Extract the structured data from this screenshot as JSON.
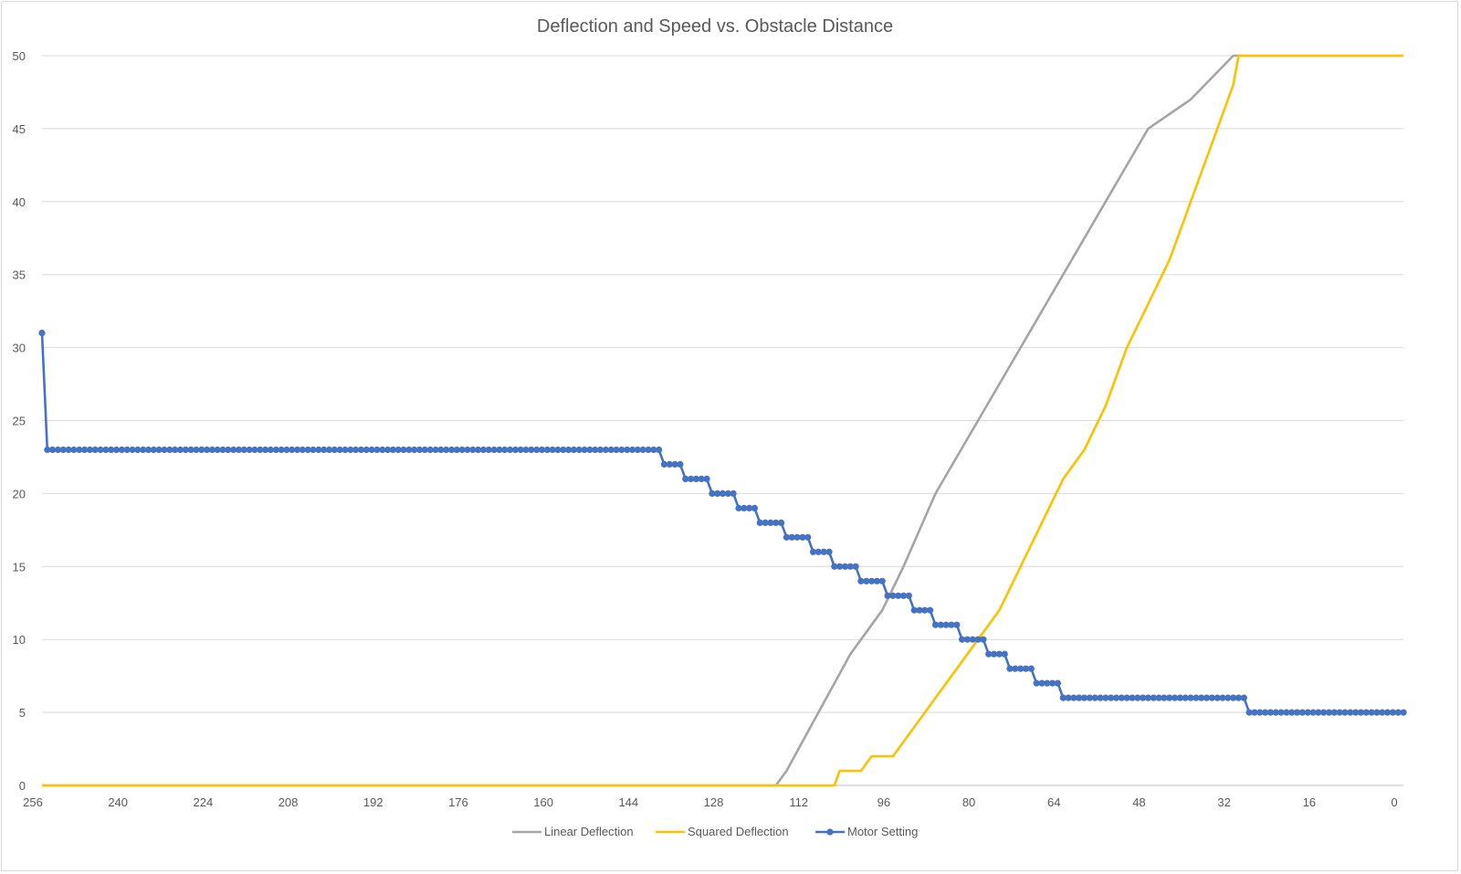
{
  "chart_data": {
    "type": "line",
    "title": "Deflection and Speed vs. Obstacle Distance",
    "xlabel": "",
    "ylabel": "",
    "x_range": [
      256,
      0
    ],
    "x_reversed": true,
    "ylim": [
      0,
      50
    ],
    "x_ticks": [
      256,
      240,
      224,
      208,
      192,
      176,
      160,
      144,
      128,
      112,
      96,
      80,
      64,
      48,
      32,
      16,
      0
    ],
    "y_ticks": [
      0,
      5,
      10,
      15,
      20,
      25,
      30,
      35,
      40,
      45,
      50
    ],
    "grid": "horizontal",
    "legend_position": "bottom",
    "series": [
      {
        "name": "Linear Deflection",
        "color": "#a5a5a5",
        "markers": false,
        "points": [
          [
            256,
            0
          ],
          [
            118,
            0
          ],
          [
            116,
            1
          ],
          [
            110,
            5
          ],
          [
            104,
            9
          ],
          [
            98,
            12
          ],
          [
            94,
            15
          ],
          [
            88,
            20
          ],
          [
            80,
            25
          ],
          [
            72,
            30
          ],
          [
            64,
            35
          ],
          [
            56,
            40
          ],
          [
            48,
            45
          ],
          [
            40,
            47
          ],
          [
            32,
            50
          ],
          [
            0,
            50
          ]
        ]
      },
      {
        "name": "Squared Deflection",
        "color": "#ffc000",
        "markers": false,
        "points": [
          [
            256,
            0
          ],
          [
            107,
            0
          ],
          [
            106,
            1
          ],
          [
            102,
            1
          ],
          [
            100,
            2
          ],
          [
            96,
            2
          ],
          [
            92,
            4
          ],
          [
            88,
            6
          ],
          [
            84,
            8
          ],
          [
            80,
            10
          ],
          [
            76,
            12
          ],
          [
            72,
            15
          ],
          [
            68,
            18
          ],
          [
            64,
            21
          ],
          [
            60,
            23
          ],
          [
            56,
            26
          ],
          [
            52,
            30
          ],
          [
            48,
            33
          ],
          [
            44,
            36
          ],
          [
            40,
            40
          ],
          [
            36,
            44
          ],
          [
            32,
            48
          ],
          [
            31,
            50
          ],
          [
            0,
            50
          ]
        ]
      },
      {
        "name": "Motor Setting",
        "color": "#4472c4",
        "markers": true,
        "steps": [
          {
            "from": 256,
            "to": 256,
            "value": 31
          },
          {
            "from": 255,
            "to": 140,
            "value": 23
          },
          {
            "from": 139,
            "to": 136,
            "value": 22
          },
          {
            "from": 135,
            "to": 131,
            "value": 21
          },
          {
            "from": 130,
            "to": 126,
            "value": 20
          },
          {
            "from": 125,
            "to": 122,
            "value": 19
          },
          {
            "from": 121,
            "to": 117,
            "value": 18
          },
          {
            "from": 116,
            "to": 112,
            "value": 17
          },
          {
            "from": 111,
            "to": 108,
            "value": 16
          },
          {
            "from": 107,
            "to": 103,
            "value": 15
          },
          {
            "from": 102,
            "to": 98,
            "value": 14
          },
          {
            "from": 97,
            "to": 93,
            "value": 13
          },
          {
            "from": 92,
            "to": 89,
            "value": 12
          },
          {
            "from": 88,
            "to": 84,
            "value": 11
          },
          {
            "from": 83,
            "to": 79,
            "value": 10
          },
          {
            "from": 78,
            "to": 75,
            "value": 9
          },
          {
            "from": 74,
            "to": 70,
            "value": 8
          },
          {
            "from": 69,
            "to": 65,
            "value": 7
          },
          {
            "from": 64,
            "to": 30,
            "value": 6
          },
          {
            "from": 29,
            "to": 0,
            "value": 5
          }
        ]
      }
    ]
  }
}
